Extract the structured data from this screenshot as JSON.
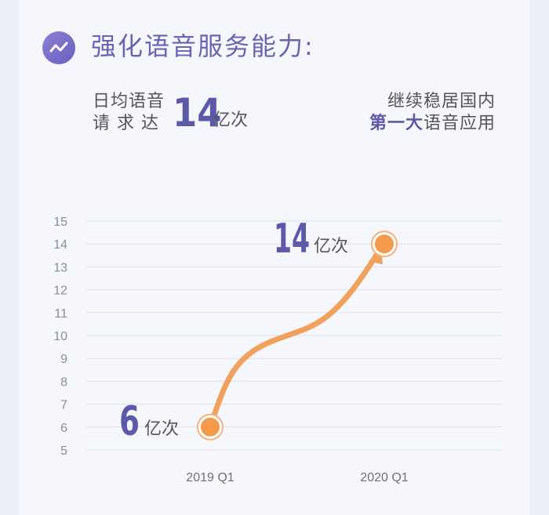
{
  "heading": {
    "title": "强化语音服务能力:",
    "icon": "trend-wave-icon"
  },
  "stat_left": {
    "line1": "日均语音",
    "line2": "请 求 达",
    "value": "14",
    "unit": "亿次"
  },
  "stat_right": {
    "line1": "继续稳居国内",
    "emph": "第一大",
    "rest": "语音应用"
  },
  "colors": {
    "accent": "#5c5aa8",
    "curve": "#f0a15c",
    "point": "#f39a4b"
  },
  "chart_data": {
    "type": "line",
    "categories": [
      "2019 Q1",
      "2020 Q1"
    ],
    "series": [
      {
        "values": [
          6,
          14
        ]
      }
    ],
    "ylim": [
      5,
      15
    ],
    "yticks": [
      "5",
      "6",
      "7",
      "8",
      "9",
      "10",
      "11",
      "12",
      "13",
      "14",
      "15"
    ],
    "data_labels": [
      {
        "value": "6",
        "unit": "亿次"
      },
      {
        "value": "14",
        "unit": "亿次"
      }
    ],
    "grid": true,
    "legend": "none"
  }
}
